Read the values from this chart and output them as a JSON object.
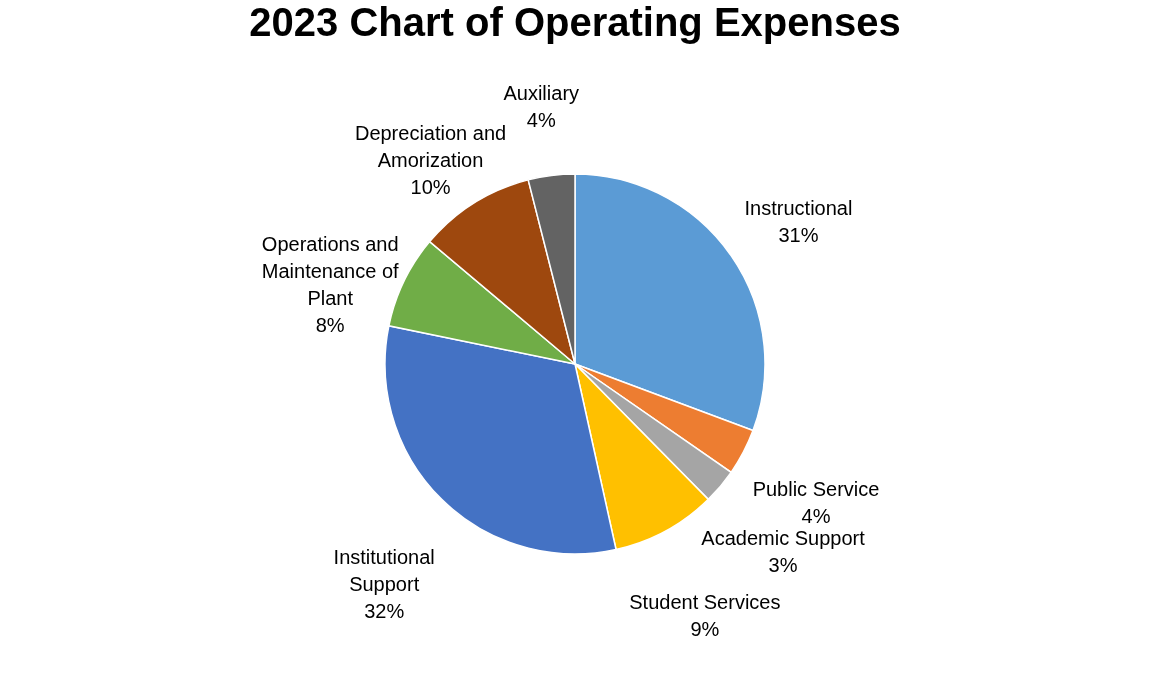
{
  "chart_data": {
    "type": "pie",
    "title": "2023 Chart of Operating Expenses",
    "categories": [
      "Instructional",
      "Public Service",
      "Academic Support",
      "Student Services",
      "Institutional Support",
      "Operations and Maintenance of Plant",
      "Depreciation and Amorization",
      "Auxiliary"
    ],
    "values": [
      31,
      4,
      3,
      9,
      32,
      8,
      10,
      4
    ],
    "value_labels": [
      "31%",
      "4%",
      "3%",
      "9%",
      "32%",
      "8%",
      "10%",
      "4%"
    ],
    "colors": [
      "#5b9bd5",
      "#ed7d31",
      "#a5a5a5",
      "#ffc000",
      "#4472c4",
      "#70ad47",
      "#9e480e",
      "#636363"
    ]
  }
}
